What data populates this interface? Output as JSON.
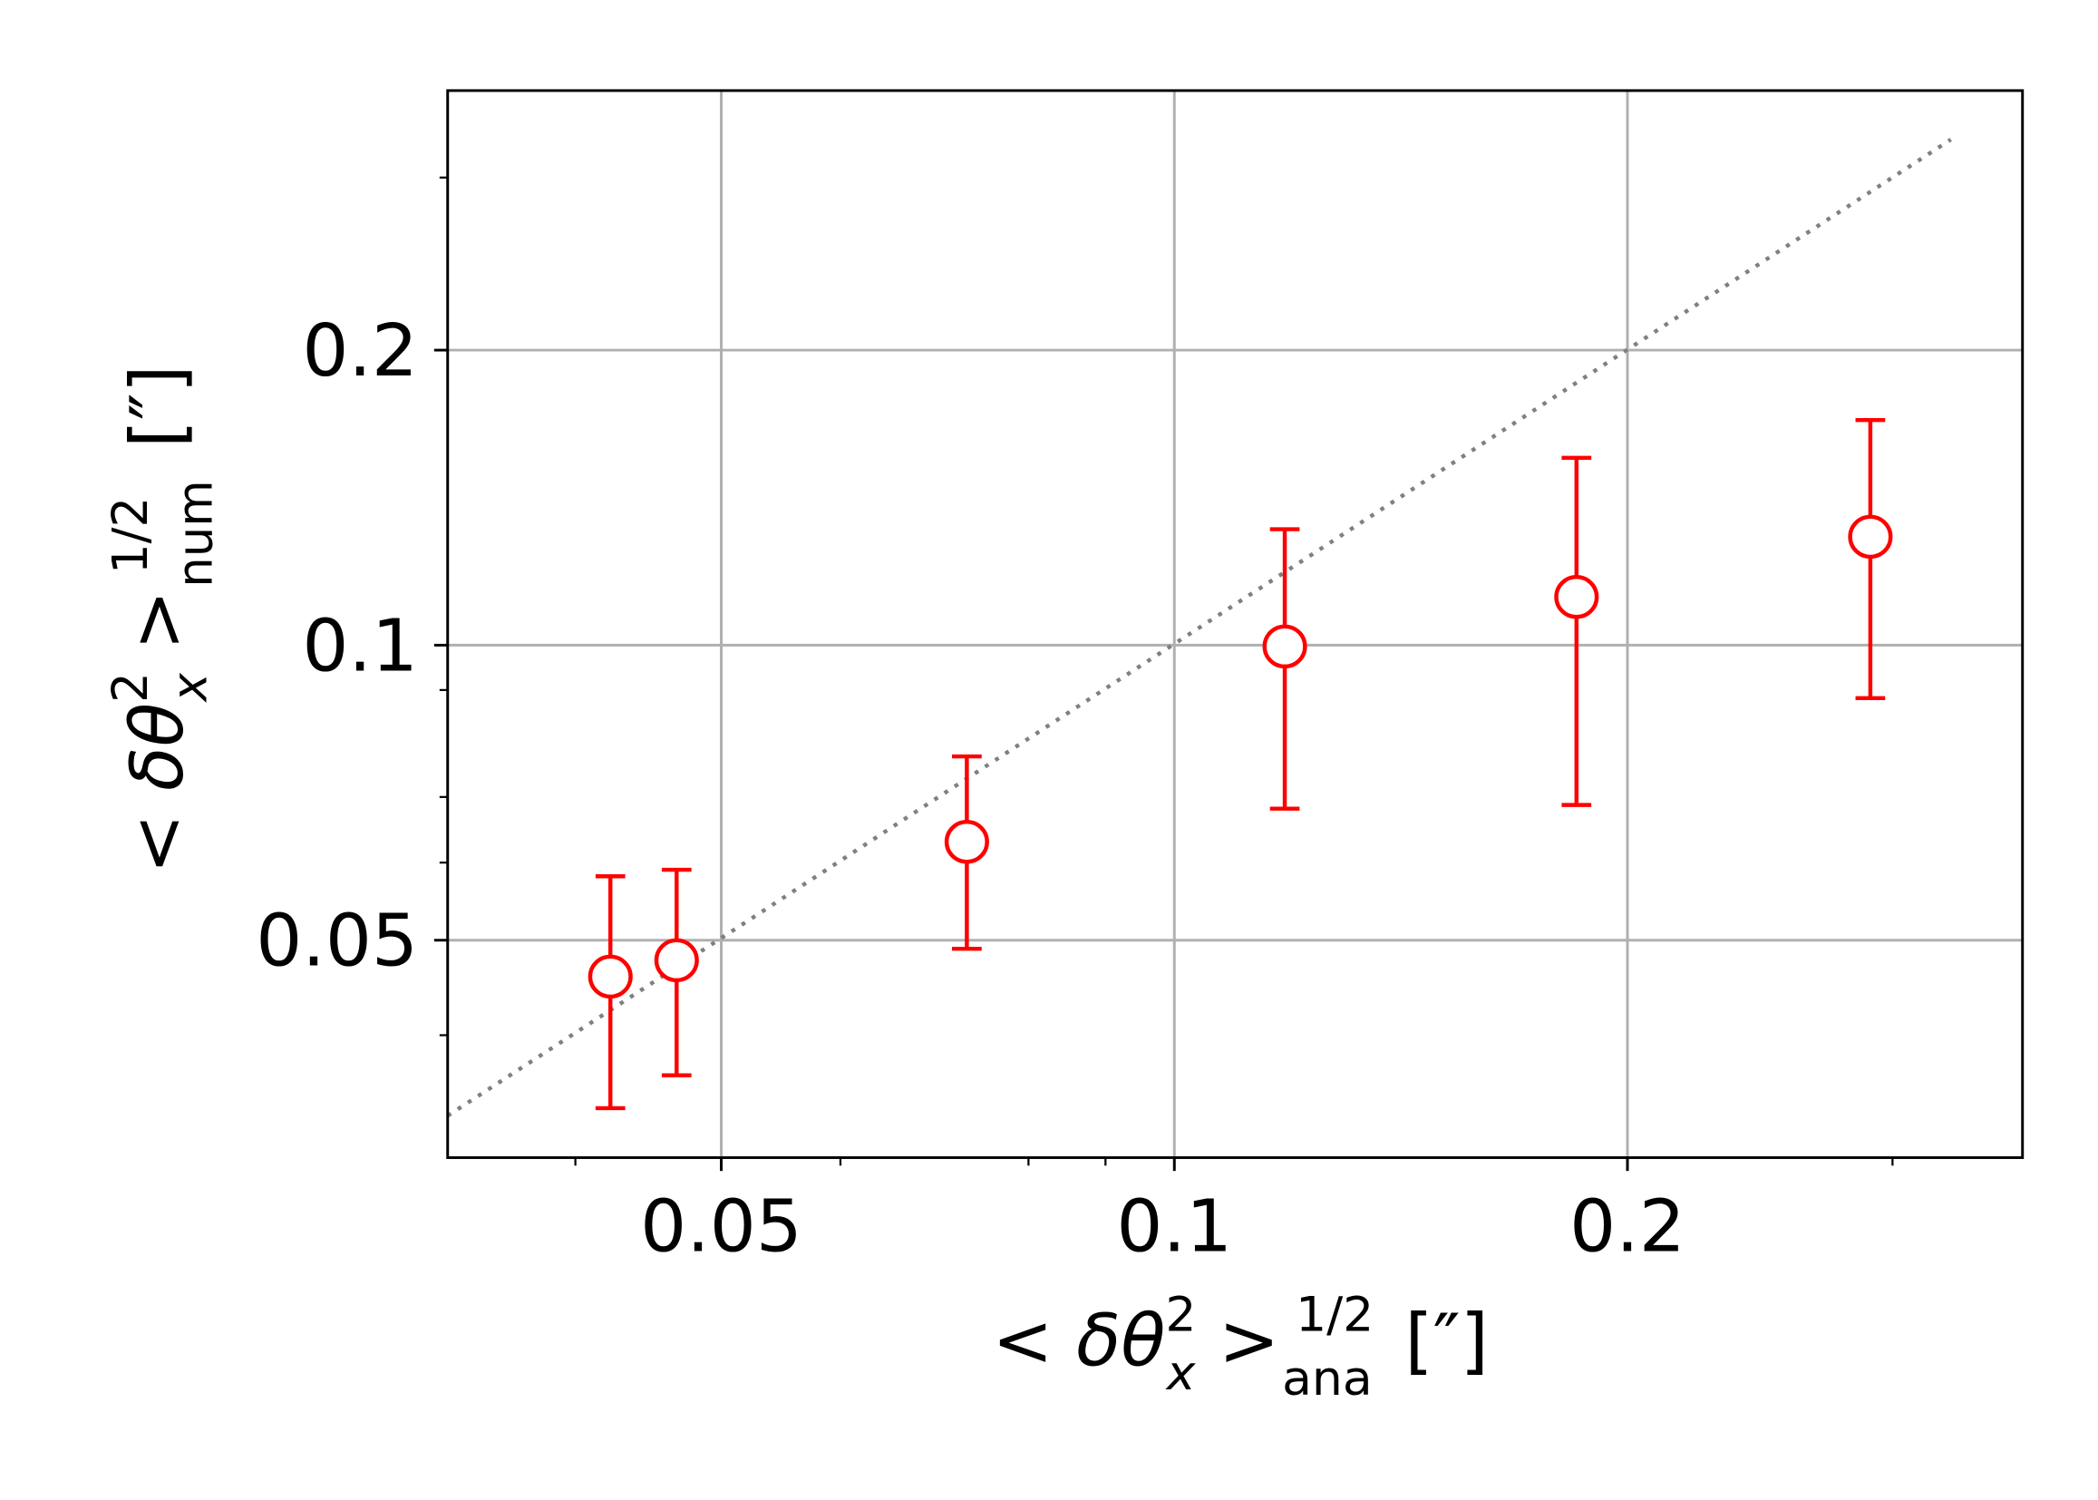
{
  "chart_data": {
    "type": "errorbar",
    "xlabel": {
      "open": "< ",
      "var": "δθ",
      "var_sup": "2",
      "var_sub": "x",
      "close": " >",
      "exp": "1/2",
      "sub": "ana",
      "unit": "[″]"
    },
    "ylabel": {
      "open": "< ",
      "var": "δθ",
      "var_sup": "2",
      "var_sub": "x",
      "close": " >",
      "exp": "1/2",
      "sub": "num",
      "unit": "[″]"
    },
    "xlog": true,
    "ylog": true,
    "grid": true,
    "xlim": [
      0.0329,
      0.366
    ],
    "ylim": [
      0.03,
      0.368
    ],
    "xticks": [
      0.05,
      0.1,
      0.2
    ],
    "yticks": [
      0.05,
      0.1,
      0.2
    ],
    "xminorticks": [
      0.04,
      0.06,
      0.08,
      0.09,
      0.3
    ],
    "yminorticks": [
      0.04,
      0.06,
      0.07,
      0.09,
      0.3
    ],
    "reference": {
      "x": [
        0.0329,
        0.328
      ],
      "values": [
        0.0331,
        0.328
      ],
      "color": "#808080"
    },
    "series": [
      {
        "color": "#ff0000",
        "x": [
          0.0422,
          0.0467,
          0.0728,
          0.1184,
          0.185,
          0.29
        ],
        "values": [
          0.0459,
          0.0477,
          0.063,
          0.0997,
          0.112,
          0.129
        ],
        "errors": [
          0.0122,
          0.0113,
          0.014,
          0.0316,
          0.0433,
          0.0407
        ]
      }
    ]
  }
}
